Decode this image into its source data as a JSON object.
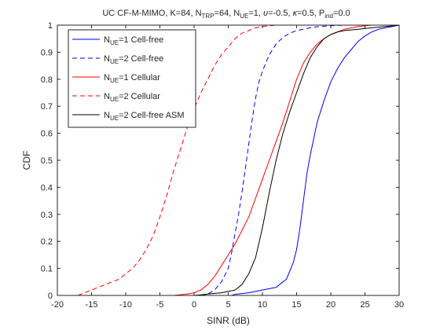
{
  "chart_data": {
    "type": "line",
    "title": {
      "pre": "UC CF-M-MIMO, K=84, N",
      "trp_sub": "TRP",
      "mid1": "=64, N",
      "ue_sub": "UE",
      "mid2": "=1, ",
      "upsilon": "υ",
      "mid3": "=-0.5, ",
      "kappa": "κ",
      "mid4": "=0.5, P",
      "ind_sub": "ind",
      "end": "=0.0"
    },
    "xlabel": "SINR (dB)",
    "ylabel": "CDF",
    "xlim": [
      -20,
      30
    ],
    "ylim": [
      0,
      1
    ],
    "xticks": [
      -20,
      -15,
      -10,
      -5,
      0,
      5,
      10,
      15,
      20,
      25,
      30
    ],
    "yticks": [
      0,
      0.1,
      0.2,
      0.3,
      0.4,
      0.5,
      0.6,
      0.7,
      0.8,
      0.9,
      1
    ],
    "grid": false,
    "legend_position": "top-left",
    "series": [
      {
        "name": "N_UE=1 Cell-free",
        "legend": {
          "pre": "N",
          "sub": "UE",
          "post": "=1 Cell-free"
        },
        "color": "#0000ff",
        "style": "solid",
        "points": [
          [
            5.5,
            0
          ],
          [
            6,
            0.004
          ],
          [
            8,
            0.01
          ],
          [
            10,
            0.02
          ],
          [
            11,
            0.025
          ],
          [
            12,
            0.03
          ],
          [
            13,
            0.05
          ],
          [
            13.5,
            0.06
          ],
          [
            14,
            0.09
          ],
          [
            14.5,
            0.12
          ],
          [
            15,
            0.17
          ],
          [
            15.5,
            0.25
          ],
          [
            16,
            0.35
          ],
          [
            16.5,
            0.45
          ],
          [
            17,
            0.52
          ],
          [
            17.5,
            0.58
          ],
          [
            18,
            0.64
          ],
          [
            19,
            0.72
          ],
          [
            20,
            0.79
          ],
          [
            21,
            0.84
          ],
          [
            22,
            0.88
          ],
          [
            23,
            0.91
          ],
          [
            24,
            0.94
          ],
          [
            25,
            0.96
          ],
          [
            26,
            0.975
          ],
          [
            27,
            0.985
          ],
          [
            28,
            0.99
          ],
          [
            29,
            0.995
          ],
          [
            30,
            1
          ]
        ]
      },
      {
        "name": "N_UE=2 Cell-free",
        "legend": {
          "pre": "N",
          "sub": "UE",
          "post": "=2 Cell-free"
        },
        "color": "#0000ff",
        "style": "dashed",
        "points": [
          [
            1,
            0
          ],
          [
            2,
            0.005
          ],
          [
            3,
            0.02
          ],
          [
            4,
            0.05
          ],
          [
            5,
            0.1
          ],
          [
            5.5,
            0.16
          ],
          [
            6,
            0.23
          ],
          [
            6.5,
            0.3
          ],
          [
            7,
            0.38
          ],
          [
            7.5,
            0.47
          ],
          [
            8,
            0.56
          ],
          [
            8.5,
            0.65
          ],
          [
            9,
            0.73
          ],
          [
            9.5,
            0.79
          ],
          [
            10,
            0.83
          ],
          [
            11,
            0.89
          ],
          [
            12,
            0.93
          ],
          [
            13,
            0.955
          ],
          [
            14,
            0.97
          ],
          [
            15,
            0.98
          ],
          [
            16,
            0.985
          ],
          [
            17,
            0.99
          ],
          [
            18,
            0.994
          ],
          [
            20,
            0.998
          ],
          [
            22,
            1
          ]
        ]
      },
      {
        "name": "N_UE=1 Cellular",
        "legend": {
          "pre": "N",
          "sub": "UE",
          "post": "=1 Cellular"
        },
        "color": "#ff0000",
        "style": "solid",
        "points": [
          [
            -3,
            0
          ],
          [
            -1,
            0.005
          ],
          [
            0,
            0.01
          ],
          [
            1,
            0.02
          ],
          [
            2,
            0.04
          ],
          [
            3,
            0.07
          ],
          [
            4,
            0.11
          ],
          [
            5,
            0.15
          ],
          [
            6,
            0.19
          ],
          [
            7,
            0.24
          ],
          [
            8,
            0.29
          ],
          [
            9,
            0.36
          ],
          [
            10,
            0.43
          ],
          [
            11,
            0.5
          ],
          [
            12,
            0.57
          ],
          [
            13,
            0.64
          ],
          [
            14,
            0.72
          ],
          [
            15,
            0.8
          ],
          [
            16,
            0.86
          ],
          [
            17,
            0.9
          ],
          [
            18,
            0.93
          ],
          [
            19,
            0.95
          ],
          [
            20,
            0.965
          ],
          [
            21,
            0.975
          ],
          [
            22,
            0.985
          ],
          [
            24,
            0.995
          ],
          [
            26,
            1
          ]
        ]
      },
      {
        "name": "N_UE=2 Cellular",
        "legend": {
          "pre": "N",
          "sub": "UE",
          "post": "=2 Cellular"
        },
        "color": "#ff0000",
        "style": "dashed",
        "points": [
          [
            -17,
            0
          ],
          [
            -15,
            0.02
          ],
          [
            -13,
            0.04
          ],
          [
            -11,
            0.06
          ],
          [
            -10,
            0.08
          ],
          [
            -9,
            0.1
          ],
          [
            -8,
            0.13
          ],
          [
            -7,
            0.17
          ],
          [
            -6,
            0.22
          ],
          [
            -5,
            0.29
          ],
          [
            -4,
            0.37
          ],
          [
            -3,
            0.46
          ],
          [
            -2,
            0.54
          ],
          [
            -1,
            0.62
          ],
          [
            0,
            0.69
          ],
          [
            1,
            0.75
          ],
          [
            2,
            0.8
          ],
          [
            3,
            0.85
          ],
          [
            4,
            0.89
          ],
          [
            5,
            0.92
          ],
          [
            6,
            0.95
          ],
          [
            7,
            0.97
          ],
          [
            8,
            0.98
          ],
          [
            9,
            0.99
          ],
          [
            10,
            0.995
          ],
          [
            12,
            1
          ]
        ]
      },
      {
        "name": "N_UE=2 Cell-free ASM",
        "legend": {
          "pre": "N",
          "sub": "UE",
          "post": "=2 Cell-free ASM"
        },
        "color": "#000000",
        "style": "solid",
        "points": [
          [
            0,
            0
          ],
          [
            2,
            0.005
          ],
          [
            4,
            0.01
          ],
          [
            6,
            0.02
          ],
          [
            7,
            0.04
          ],
          [
            8,
            0.08
          ],
          [
            9,
            0.14
          ],
          [
            10,
            0.25
          ],
          [
            11,
            0.38
          ],
          [
            12,
            0.5
          ],
          [
            13,
            0.6
          ],
          [
            14,
            0.68
          ],
          [
            15,
            0.75
          ],
          [
            16,
            0.82
          ],
          [
            17,
            0.88
          ],
          [
            18,
            0.92
          ],
          [
            19,
            0.95
          ],
          [
            20,
            0.965
          ],
          [
            21,
            0.975
          ],
          [
            22,
            0.98
          ],
          [
            24,
            0.985
          ],
          [
            26,
            0.99
          ],
          [
            28,
            0.995
          ],
          [
            30,
            1
          ]
        ]
      }
    ]
  }
}
